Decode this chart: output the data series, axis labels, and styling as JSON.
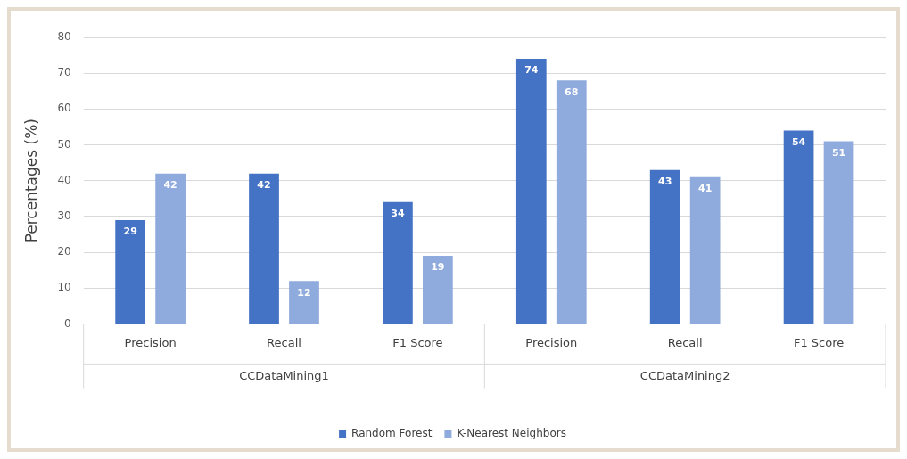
{
  "chart_data": {
    "type": "bar",
    "ylabel": "Percentages (%)",
    "categories": [
      "Precision",
      "Recall",
      "F1 Score",
      "Precision",
      "Recall",
      "F1 Score"
    ],
    "series": [
      {
        "name": "Random Forest",
        "color": "#4472c4",
        "values": [
          29,
          42,
          34,
          74,
          43,
          54
        ]
      },
      {
        "name": "K-Nearest Neighbors",
        "color": "#8faadc",
        "values": [
          42,
          12,
          19,
          68,
          41,
          51
        ]
      }
    ],
    "annotations": [
      "CCDataMining1",
      "CCDataMining2"
    ],
    "ylim": [
      0,
      80
    ],
    "yticks": [
      0,
      10,
      20,
      30,
      40,
      50,
      60,
      70,
      80
    ],
    "grid": "y",
    "legend": "bottom",
    "data_labels": true
  }
}
